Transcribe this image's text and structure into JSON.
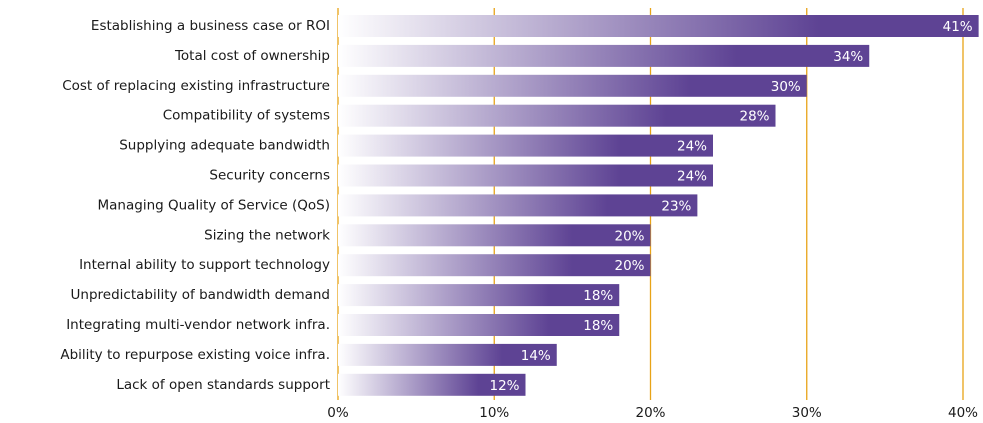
{
  "chart_data": {
    "type": "barh",
    "categories": [
      "Establishing a business case or ROI",
      "Total cost of ownership",
      "Cost of replacing existing infrastructure",
      "Compatibility of systems",
      "Supplying adequate bandwidth",
      "Security concerns",
      "Managing Quality of Service (QoS)",
      "Sizing the network",
      "Internal ability to support technology",
      "Unpredictability of bandwidth demand",
      "Integrating multi-vendor network infra.",
      "Ability to repurpose existing voice infra.",
      "Lack of open standards support"
    ],
    "values": [
      41,
      34,
      30,
      28,
      24,
      24,
      23,
      20,
      20,
      18,
      18,
      14,
      12
    ],
    "value_labels": [
      "41%",
      "34%",
      "30%",
      "28%",
      "24%",
      "24%",
      "23%",
      "20%",
      "20%",
      "18%",
      "18%",
      "14%",
      "12%"
    ],
    "color": "#5e4394",
    "grid_color": "#e8a317",
    "xlim": [
      0,
      40
    ],
    "xticks": [
      {
        "value": 0,
        "label": "0%"
      },
      {
        "value": 10,
        "label": "10%"
      },
      {
        "value": 20,
        "label": "20%"
      },
      {
        "value": 30,
        "label": "30%"
      },
      {
        "value": 40,
        "label": "40%"
      }
    ],
    "grid": true
  }
}
